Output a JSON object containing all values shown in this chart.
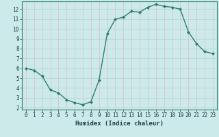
{
  "x": [
    0,
    1,
    2,
    3,
    4,
    5,
    6,
    7,
    8,
    9,
    10,
    11,
    12,
    13,
    14,
    15,
    16,
    17,
    18,
    19,
    20,
    21,
    22,
    23
  ],
  "y": [
    6.0,
    5.8,
    5.2,
    3.8,
    3.5,
    2.8,
    2.5,
    2.3,
    2.6,
    4.8,
    9.5,
    11.0,
    11.2,
    11.8,
    11.7,
    12.2,
    12.5,
    12.3,
    12.2,
    12.0,
    9.7,
    8.5,
    7.7,
    7.5
  ],
  "line_color": "#2e7d6e",
  "marker": "D",
  "marker_size": 2.0,
  "bg_color": "#cceaea",
  "grid_color": "#b0d4d4",
  "xlabel": "Humidex (Indice chaleur)",
  "xlim": [
    -0.5,
    23.5
  ],
  "ylim": [
    1.8,
    12.8
  ],
  "yticks": [
    2,
    3,
    4,
    5,
    6,
    7,
    8,
    9,
    10,
    11,
    12
  ],
  "xticks": [
    0,
    1,
    2,
    3,
    4,
    5,
    6,
    7,
    8,
    9,
    10,
    11,
    12,
    13,
    14,
    15,
    16,
    17,
    18,
    19,
    20,
    21,
    22,
    23
  ],
  "xlabel_fontsize": 6.5,
  "tick_fontsize": 5.5,
  "line_width": 1.0,
  "font_color": "#1a4040",
  "spine_color": "#2e7d6e"
}
